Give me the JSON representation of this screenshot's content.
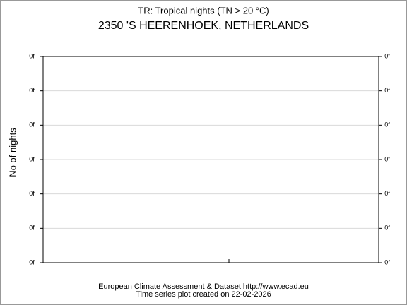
{
  "chart_data": {
    "type": "line",
    "title": "TR: Tropical nights (TN > 20 °C)",
    "subtitle": "2350 'S HEERENHOEK, NETHERLANDS",
    "ylabel": "No of nights",
    "footer": [
      "European Climate Assessment & Dataset  http://www.ecad.eu",
      "Time series plot created on 22-02-2026"
    ],
    "series": [],
    "ylim": [
      0,
      6
    ],
    "yticks": [
      {
        "value": 0,
        "label": "0f"
      },
      {
        "value": 1,
        "label": "0f"
      },
      {
        "value": 2,
        "label": "0f"
      },
      {
        "value": 3,
        "label": "0f"
      },
      {
        "value": 4,
        "label": "0f"
      },
      {
        "value": 5,
        "label": "0f"
      },
      {
        "value": 6,
        "label": "0f"
      }
    ],
    "y2lim": [
      0,
      6
    ],
    "y2ticks": [
      {
        "value": 0,
        "label": "0f"
      },
      {
        "value": 1,
        "label": "0f"
      },
      {
        "value": 2,
        "label": "0f"
      },
      {
        "value": 3,
        "label": "0f"
      },
      {
        "value": 4,
        "label": "0f"
      },
      {
        "value": 5,
        "label": "0f"
      },
      {
        "value": 6,
        "label": "0f"
      }
    ],
    "grid": true
  }
}
